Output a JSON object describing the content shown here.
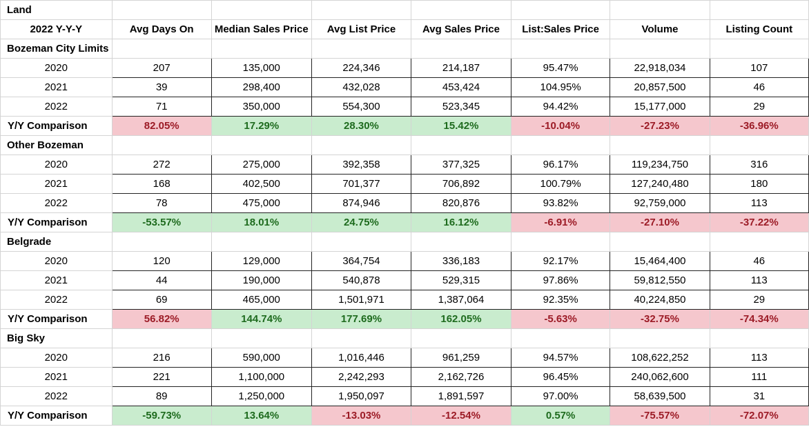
{
  "sheet": {
    "title": "Land",
    "header": {
      "period": "2022 Y-Y-Y",
      "columns": [
        "Avg Days On",
        "Median Sales Price",
        "Avg List Price",
        "Avg Sales Price",
        "List:Sales Price",
        "Volume",
        "Listing Count"
      ]
    },
    "colors": {
      "positive_fill": "#c9ecce",
      "positive_text": "#1e6b1e",
      "negative_fill": "#f5c7cd",
      "negative_text": "#9c1b26"
    },
    "sections": [
      {
        "name": "Bozeman City Limits",
        "rows": [
          {
            "year": "2020",
            "values": [
              "207",
              "135,000",
              "224,346",
              "214,187",
              "95.47%",
              "22,918,034",
              "107"
            ]
          },
          {
            "year": "2021",
            "values": [
              "39",
              "298,400",
              "432,028",
              "453,424",
              "104.95%",
              "20,857,500",
              "46"
            ]
          },
          {
            "year": "2022",
            "values": [
              "71",
              "350,000",
              "554,300",
              "523,345",
              "94.42%",
              "15,177,000",
              "29"
            ]
          }
        ],
        "comparison": {
          "label": "Y/Y Comparison",
          "values": [
            "82.05%",
            "17.29%",
            "28.30%",
            "15.42%",
            "-10.04%",
            "-27.23%",
            "-36.96%"
          ],
          "status": [
            "neg",
            "pos",
            "pos",
            "pos",
            "neg",
            "neg",
            "neg"
          ]
        }
      },
      {
        "name": "Other Bozeman",
        "rows": [
          {
            "year": "2020",
            "values": [
              "272",
              "275,000",
              "392,358",
              "377,325",
              "96.17%",
              "119,234,750",
              "316"
            ]
          },
          {
            "year": "2021",
            "values": [
              "168",
              "402,500",
              "701,377",
              "706,892",
              "100.79%",
              "127,240,480",
              "180"
            ]
          },
          {
            "year": "2022",
            "values": [
              "78",
              "475,000",
              "874,946",
              "820,876",
              "93.82%",
              "92,759,000",
              "113"
            ]
          }
        ],
        "comparison": {
          "label": "Y/Y Comparison",
          "values": [
            "-53.57%",
            "18.01%",
            "24.75%",
            "16.12%",
            "-6.91%",
            "-27.10%",
            "-37.22%"
          ],
          "status": [
            "pos",
            "pos",
            "pos",
            "pos",
            "neg",
            "neg",
            "neg"
          ]
        }
      },
      {
        "name": "Belgrade",
        "rows": [
          {
            "year": "2020",
            "values": [
              "120",
              "129,000",
              "364,754",
              "336,183",
              "92.17%",
              "15,464,400",
              "46"
            ]
          },
          {
            "year": "2021",
            "values": [
              "44",
              "190,000",
              "540,878",
              "529,315",
              "97.86%",
              "59,812,550",
              "113"
            ]
          },
          {
            "year": "2022",
            "values": [
              "69",
              "465,000",
              "1,501,971",
              "1,387,064",
              "92.35%",
              "40,224,850",
              "29"
            ]
          }
        ],
        "comparison": {
          "label": "Y/Y Comparison",
          "values": [
            "56.82%",
            "144.74%",
            "177.69%",
            "162.05%",
            "-5.63%",
            "-32.75%",
            "-74.34%"
          ],
          "status": [
            "neg",
            "pos",
            "pos",
            "pos",
            "neg",
            "neg",
            "neg"
          ]
        }
      },
      {
        "name": "Big Sky",
        "rows": [
          {
            "year": "2020",
            "values": [
              "216",
              "590,000",
              "1,016,446",
              "961,259",
              "94.57%",
              "108,622,252",
              "113"
            ]
          },
          {
            "year": "2021",
            "values": [
              "221",
              "1,100,000",
              "2,242,293",
              "2,162,726",
              "96.45%",
              "240,062,600",
              "111"
            ]
          },
          {
            "year": "2022",
            "values": [
              "89",
              "1,250,000",
              "1,950,097",
              "1,891,597",
              "97.00%",
              "58,639,500",
              "31"
            ]
          }
        ],
        "comparison": {
          "label": "Y/Y Comparison",
          "values": [
            "-59.73%",
            "13.64%",
            "-13.03%",
            "-12.54%",
            "0.57%",
            "-75.57%",
            "-72.07%"
          ],
          "status": [
            "pos",
            "pos",
            "neg",
            "neg",
            "pos",
            "neg",
            "neg"
          ]
        }
      }
    ]
  }
}
